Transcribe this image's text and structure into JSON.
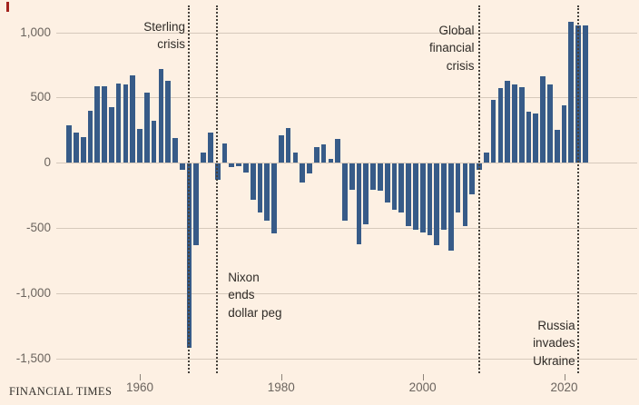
{
  "colors": {
    "background": "#fdf0e3",
    "bar": "#375b88",
    "gridline": "#d6c9bb",
    "event_line": "#45403a",
    "axis_text": "#6b645e",
    "annotation_text": "#2f2b27",
    "red_mark": "#a3231e"
  },
  "chart_data": {
    "type": "bar",
    "x": [
      1950,
      1951,
      1952,
      1953,
      1954,
      1955,
      1956,
      1957,
      1958,
      1959,
      1960,
      1961,
      1962,
      1963,
      1964,
      1965,
      1966,
      1967,
      1968,
      1969,
      1970,
      1971,
      1972,
      1973,
      1974,
      1975,
      1976,
      1977,
      1978,
      1979,
      1980,
      1981,
      1982,
      1983,
      1984,
      1985,
      1986,
      1987,
      1988,
      1989,
      1990,
      1991,
      1992,
      1993,
      1994,
      1995,
      1996,
      1997,
      1998,
      1999,
      2000,
      2001,
      2002,
      2003,
      2004,
      2005,
      2006,
      2007,
      2008,
      2009,
      2010,
      2011,
      2012,
      2013,
      2014,
      2015,
      2016,
      2017,
      2018,
      2019,
      2020,
      2021,
      2022,
      2023
    ],
    "values": [
      290,
      230,
      200,
      400,
      590,
      590,
      430,
      610,
      600,
      670,
      260,
      540,
      320,
      720,
      630,
      190,
      -50,
      -1410,
      -630,
      80,
      230,
      -130,
      150,
      -30,
      -20,
      -70,
      -280,
      -380,
      -440,
      -540,
      210,
      270,
      80,
      -150,
      -80,
      120,
      140,
      30,
      180,
      -440,
      -200,
      -620,
      -470,
      -200,
      -210,
      -300,
      -355,
      -375,
      -480,
      -510,
      -530,
      -550,
      -630,
      -510,
      -670,
      -380,
      -480,
      -240,
      -50,
      80,
      480,
      570,
      630,
      600,
      580,
      390,
      380,
      660,
      600,
      250,
      440,
      1080,
      1050,
      1050
    ],
    "title": "",
    "xlabel": "",
    "ylabel": "",
    "ylim": [
      -1500,
      1000
    ],
    "grid": true,
    "y_ticks": [
      {
        "value": 1000,
        "label": "1,000"
      },
      {
        "value": 500,
        "label": "500"
      },
      {
        "value": 0,
        "label": "0"
      },
      {
        "value": -500,
        "label": "-500"
      },
      {
        "value": -1000,
        "label": "-1,000"
      },
      {
        "value": -1500,
        "label": "-1,500"
      }
    ],
    "x_ticks": [
      {
        "value": 1960,
        "label": "1960"
      },
      {
        "value": 1980,
        "label": "1980"
      },
      {
        "value": 2000,
        "label": "2000"
      },
      {
        "value": 2020,
        "label": "2020"
      }
    ],
    "annotations": [
      {
        "id": "sterling-crisis",
        "year": 1967,
        "lines": [
          "Sterling",
          "crisis"
        ]
      },
      {
        "id": "nixon-dollar-peg",
        "year": 1971,
        "lines": [
          "Nixon",
          "ends",
          "dollar peg"
        ]
      },
      {
        "id": "global-financial-crisis",
        "year": 2008,
        "lines": [
          "Global",
          "financial",
          "crisis"
        ]
      },
      {
        "id": "russia-invades-ukraine",
        "year": 2022,
        "lines": [
          "Russia",
          "invades",
          "Ukraine"
        ]
      }
    ]
  },
  "footer": {
    "brand": "FINANCIAL TIMES"
  }
}
